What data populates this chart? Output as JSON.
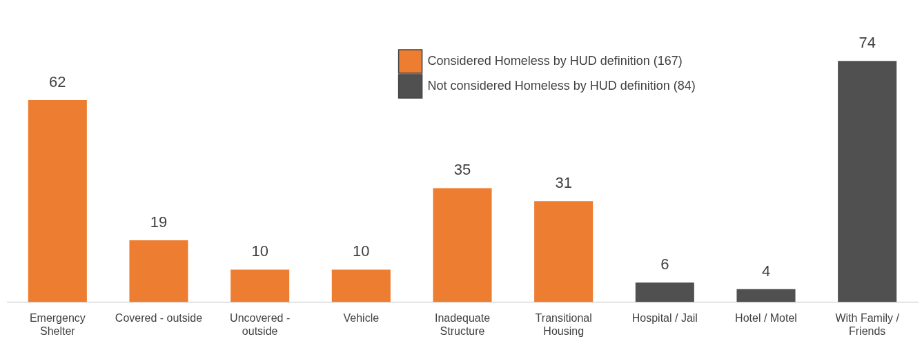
{
  "chart_data": {
    "type": "bar",
    "categories": [
      "Emergency Shelter",
      "Covered - outside",
      "Uncovered - outside",
      "Vehicle",
      "Inadequate Structure",
      "Transitional Housing",
      "Hospital / Jail",
      "Hotel / Motel",
      "With Family / Friends"
    ],
    "series": [
      {
        "name": "Considered Homeless by HUD definition (167)",
        "color": "#ed7d31",
        "values": [
          62,
          19,
          10,
          10,
          35,
          31,
          null,
          null,
          null
        ]
      },
      {
        "name": "Not considered Homeless by HUD definition (84)",
        "color": "#505050",
        "values": [
          null,
          null,
          null,
          null,
          null,
          null,
          6,
          4,
          74
        ]
      }
    ],
    "data_labels": true,
    "legend": "top right",
    "grid": false
  }
}
